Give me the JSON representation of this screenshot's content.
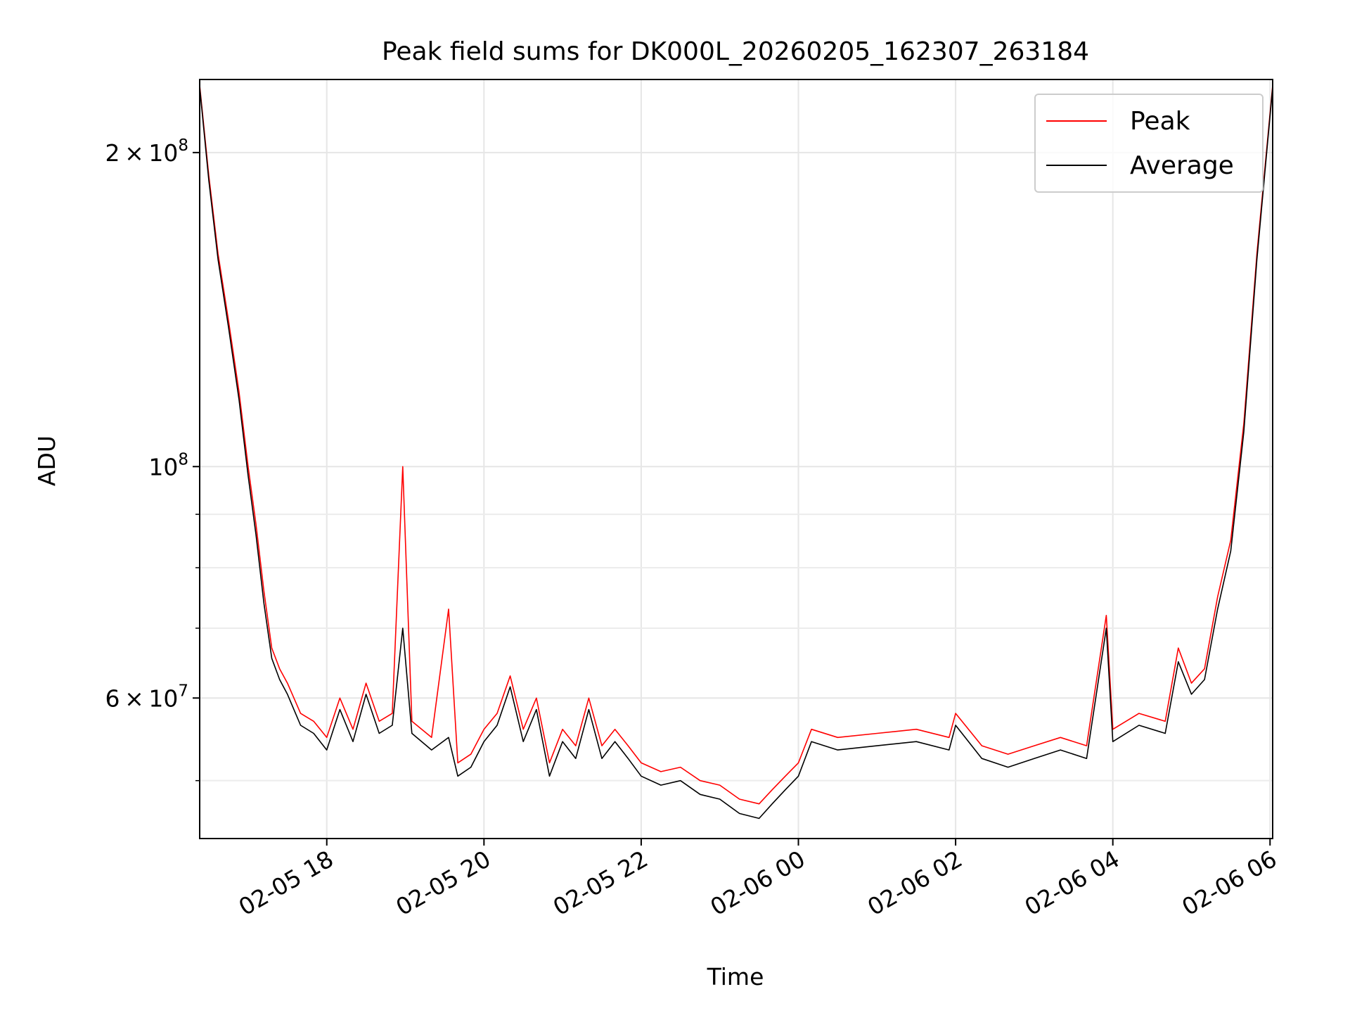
{
  "chart_data": {
    "type": "line",
    "title": "Peak field sums for DK000L_20260205_162307_263184",
    "xlabel": "Time",
    "ylabel": "ADU",
    "yscale": "log",
    "xlim": [
      "2026-02-05 16:23",
      "2026-02-06 06:02"
    ],
    "ylim": [
      44000000,
      235000000
    ],
    "x_ticks": [
      "02-05 18",
      "02-05 20",
      "02-05 22",
      "02-06 00",
      "02-06 02",
      "02-06 04",
      "02-06 06"
    ],
    "y_tick_labels": [
      {
        "value": 200000000,
        "mantissa": "2",
        "exponent": "8"
      },
      {
        "value": 100000000,
        "mantissa": "",
        "exponent": "8"
      },
      {
        "value": 60000000,
        "mantissa": "6",
        "exponent": "7"
      }
    ],
    "y_minor_ticks": [
      50000000,
      70000000,
      80000000,
      90000000
    ],
    "grid": true,
    "legend_position": "upper-right",
    "series": [
      {
        "name": "Peak",
        "color": "#ff0000",
        "points": [
          [
            "2026-02-05 16:23",
            232000000
          ],
          [
            "2026-02-05 16:30",
            190000000
          ],
          [
            "2026-02-05 16:37",
            160000000
          ],
          [
            "2026-02-05 16:45",
            138000000
          ],
          [
            "2026-02-05 16:53",
            118000000
          ],
          [
            "2026-02-05 17:00",
            100000000
          ],
          [
            "2026-02-05 17:06",
            88000000
          ],
          [
            "2026-02-05 17:12",
            76000000
          ],
          [
            "2026-02-05 17:18",
            67000000
          ],
          [
            "2026-02-05 17:24",
            64000000
          ],
          [
            "2026-02-05 17:30",
            62000000
          ],
          [
            "2026-02-05 17:40",
            58000000
          ],
          [
            "2026-02-05 17:50",
            57000000
          ],
          [
            "2026-02-05 18:00",
            55000000
          ],
          [
            "2026-02-05 18:10",
            60000000
          ],
          [
            "2026-02-05 18:20",
            56000000
          ],
          [
            "2026-02-05 18:30",
            62000000
          ],
          [
            "2026-02-05 18:40",
            57000000
          ],
          [
            "2026-02-05 18:50",
            58000000
          ],
          [
            "2026-02-05 18:58",
            100000000
          ],
          [
            "2026-02-05 19:05",
            57000000
          ],
          [
            "2026-02-05 19:20",
            55000000
          ],
          [
            "2026-02-05 19:33",
            73000000
          ],
          [
            "2026-02-05 19:40",
            52000000
          ],
          [
            "2026-02-05 19:50",
            53000000
          ],
          [
            "2026-02-05 20:00",
            56000000
          ],
          [
            "2026-02-05 20:10",
            58000000
          ],
          [
            "2026-02-05 20:20",
            63000000
          ],
          [
            "2026-02-05 20:30",
            56000000
          ],
          [
            "2026-02-05 20:40",
            60000000
          ],
          [
            "2026-02-05 20:50",
            52000000
          ],
          [
            "2026-02-05 21:00",
            56000000
          ],
          [
            "2026-02-05 21:10",
            54000000
          ],
          [
            "2026-02-05 21:20",
            60000000
          ],
          [
            "2026-02-05 21:30",
            54000000
          ],
          [
            "2026-02-05 21:40",
            56000000
          ],
          [
            "2026-02-05 21:50",
            54000000
          ],
          [
            "2026-02-05 22:00",
            52000000
          ],
          [
            "2026-02-05 22:15",
            51000000
          ],
          [
            "2026-02-05 22:30",
            51500000
          ],
          [
            "2026-02-05 22:45",
            50000000
          ],
          [
            "2026-02-05 23:00",
            49500000
          ],
          [
            "2026-02-05 23:15",
            48000000
          ],
          [
            "2026-02-05 23:30",
            47500000
          ],
          [
            "2026-02-05 23:40",
            49000000
          ],
          [
            "2026-02-05 23:50",
            50500000
          ],
          [
            "2026-02-06 00:00",
            52000000
          ],
          [
            "2026-02-06 00:10",
            56000000
          ],
          [
            "2026-02-06 00:30",
            55000000
          ],
          [
            "2026-02-06 01:00",
            55500000
          ],
          [
            "2026-02-06 01:30",
            56000000
          ],
          [
            "2026-02-06 01:55",
            55000000
          ],
          [
            "2026-02-06 02:00",
            58000000
          ],
          [
            "2026-02-06 02:20",
            54000000
          ],
          [
            "2026-02-06 02:40",
            53000000
          ],
          [
            "2026-02-06 03:00",
            54000000
          ],
          [
            "2026-02-06 03:20",
            55000000
          ],
          [
            "2026-02-06 03:40",
            54000000
          ],
          [
            "2026-02-06 03:55",
            72000000
          ],
          [
            "2026-02-06 04:00",
            56000000
          ],
          [
            "2026-02-06 04:20",
            58000000
          ],
          [
            "2026-02-06 04:40",
            57000000
          ],
          [
            "2026-02-06 04:50",
            67000000
          ],
          [
            "2026-02-06 05:00",
            62000000
          ],
          [
            "2026-02-06 05:10",
            64000000
          ],
          [
            "2026-02-06 05:20",
            75000000
          ],
          [
            "2026-02-06 05:30",
            85000000
          ],
          [
            "2026-02-06 05:40",
            110000000
          ],
          [
            "2026-02-06 05:50",
            160000000
          ],
          [
            "2026-02-06 06:02",
            232000000
          ]
        ]
      },
      {
        "name": "Average",
        "color": "#000000",
        "points": [
          [
            "2026-02-05 16:23",
            231000000
          ],
          [
            "2026-02-05 16:30",
            188000000
          ],
          [
            "2026-02-05 16:37",
            158000000
          ],
          [
            "2026-02-05 16:45",
            136000000
          ],
          [
            "2026-02-05 16:53",
            116000000
          ],
          [
            "2026-02-05 17:00",
            98000000
          ],
          [
            "2026-02-05 17:06",
            86000000
          ],
          [
            "2026-02-05 17:12",
            74000000
          ],
          [
            "2026-02-05 17:18",
            65500000
          ],
          [
            "2026-02-05 17:24",
            62500000
          ],
          [
            "2026-02-05 17:30",
            60500000
          ],
          [
            "2026-02-05 17:40",
            56500000
          ],
          [
            "2026-02-05 17:50",
            55500000
          ],
          [
            "2026-02-05 18:00",
            53500000
          ],
          [
            "2026-02-05 18:10",
            58500000
          ],
          [
            "2026-02-05 18:20",
            54500000
          ],
          [
            "2026-02-05 18:30",
            60500000
          ],
          [
            "2026-02-05 18:40",
            55500000
          ],
          [
            "2026-02-05 18:50",
            56500000
          ],
          [
            "2026-02-05 18:58",
            70000000
          ],
          [
            "2026-02-05 19:05",
            55500000
          ],
          [
            "2026-02-05 19:20",
            53500000
          ],
          [
            "2026-02-05 19:33",
            55000000
          ],
          [
            "2026-02-05 19:40",
            50500000
          ],
          [
            "2026-02-05 19:50",
            51500000
          ],
          [
            "2026-02-05 20:00",
            54500000
          ],
          [
            "2026-02-05 20:10",
            56500000
          ],
          [
            "2026-02-05 20:20",
            61500000
          ],
          [
            "2026-02-05 20:30",
            54500000
          ],
          [
            "2026-02-05 20:40",
            58500000
          ],
          [
            "2026-02-05 20:50",
            50500000
          ],
          [
            "2026-02-05 21:00",
            54500000
          ],
          [
            "2026-02-05 21:10",
            52500000
          ],
          [
            "2026-02-05 21:20",
            58500000
          ],
          [
            "2026-02-05 21:30",
            52500000
          ],
          [
            "2026-02-05 21:40",
            54500000
          ],
          [
            "2026-02-05 21:50",
            52500000
          ],
          [
            "2026-02-05 22:00",
            50500000
          ],
          [
            "2026-02-05 22:15",
            49500000
          ],
          [
            "2026-02-05 22:30",
            50000000
          ],
          [
            "2026-02-05 22:45",
            48500000
          ],
          [
            "2026-02-05 23:00",
            48000000
          ],
          [
            "2026-02-05 23:15",
            46500000
          ],
          [
            "2026-02-05 23:30",
            46000000
          ],
          [
            "2026-02-05 23:40",
            47500000
          ],
          [
            "2026-02-05 23:50",
            49000000
          ],
          [
            "2026-02-06 00:00",
            50500000
          ],
          [
            "2026-02-06 00:10",
            54500000
          ],
          [
            "2026-02-06 00:30",
            53500000
          ],
          [
            "2026-02-06 01:00",
            54000000
          ],
          [
            "2026-02-06 01:30",
            54500000
          ],
          [
            "2026-02-06 01:55",
            53500000
          ],
          [
            "2026-02-06 02:00",
            56500000
          ],
          [
            "2026-02-06 02:20",
            52500000
          ],
          [
            "2026-02-06 02:40",
            51500000
          ],
          [
            "2026-02-06 03:00",
            52500000
          ],
          [
            "2026-02-06 03:20",
            53500000
          ],
          [
            "2026-02-06 03:40",
            52500000
          ],
          [
            "2026-02-06 03:55",
            70000000
          ],
          [
            "2026-02-06 04:00",
            54500000
          ],
          [
            "2026-02-06 04:20",
            56500000
          ],
          [
            "2026-02-06 04:40",
            55500000
          ],
          [
            "2026-02-06 04:50",
            65000000
          ],
          [
            "2026-02-06 05:00",
            60500000
          ],
          [
            "2026-02-06 05:10",
            62500000
          ],
          [
            "2026-02-06 05:20",
            73000000
          ],
          [
            "2026-02-06 05:30",
            83000000
          ],
          [
            "2026-02-06 05:40",
            108000000
          ],
          [
            "2026-02-06 05:50",
            158000000
          ],
          [
            "2026-02-06 06:02",
            231000000
          ]
        ]
      }
    ]
  }
}
